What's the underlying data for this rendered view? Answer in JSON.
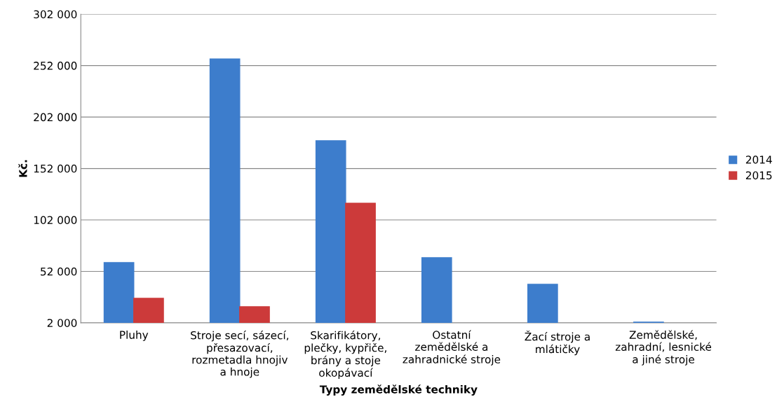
{
  "chart_data": {
    "type": "bar",
    "xlabel": "Typy zemědělské techniky",
    "ylabel": "Kč.",
    "categories": [
      "Pluhy",
      "Stroje secí, sázecí,\npřesazovací,\nrozmetadla hnojiv\na hnoje",
      "Skarifikátory,\nplečky, kypřiče,\nbrány a stoje\nokopávací",
      "Ostatní\nzemědělské a\nzahradnické stroje",
      "Žací stroje a\nmlátičky",
      "Zemědělské,\nzahradní, lesnické\na jiné stroje"
    ],
    "series": [
      {
        "name": "2014",
        "color": "#3d7dcc",
        "values": [
          60500,
          258500,
          178900,
          65300,
          39400,
          2700
        ]
      },
      {
        "name": "2015",
        "color": "#cc3a3a",
        "values": [
          25800,
          17600,
          118300,
          null,
          null,
          null
        ]
      }
    ],
    "ylim": [
      2000,
      302000
    ],
    "yticks": [
      {
        "value": 2000,
        "label": "2 000"
      },
      {
        "value": 52000,
        "label": "52 000"
      },
      {
        "value": 102000,
        "label": "102 000"
      },
      {
        "value": 152000,
        "label": "152 000"
      },
      {
        "value": 202000,
        "label": "202 000"
      },
      {
        "value": 252000,
        "label": "252 000"
      },
      {
        "value": 302000,
        "label": "302 000"
      }
    ],
    "grid": "y",
    "legend": "right"
  }
}
